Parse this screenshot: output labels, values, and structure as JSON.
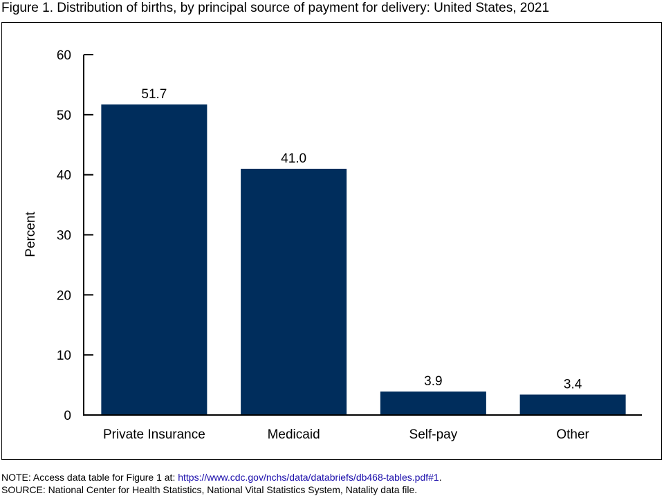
{
  "title": "Figure 1. Distribution of births, by principal source of payment for delivery: United States, 2021",
  "chart_data": {
    "type": "bar",
    "categories": [
      "Private Insurance",
      "Medicaid",
      "Self-pay",
      "Other"
    ],
    "values": [
      51.7,
      41.0,
      3.9,
      3.4
    ],
    "value_labels": [
      "51.7",
      "41.0",
      "3.9",
      "3.4"
    ],
    "xlabel": "",
    "ylabel": "Percent",
    "ylim": [
      0,
      60
    ],
    "yticks": [
      0,
      10,
      20,
      30,
      40,
      50,
      60
    ],
    "grid": false,
    "bar_color": "#002d5c"
  },
  "notes": {
    "note_prefix": "NOTE: Access data table for Figure 1 at: ",
    "note_link": "https://www.cdc.gov/nchs/data/databriefs/db468-tables.pdf#1",
    "note_suffix": ".",
    "source": "SOURCE: National Center for Health Statistics, National Vital Statistics System, Natality data file."
  }
}
